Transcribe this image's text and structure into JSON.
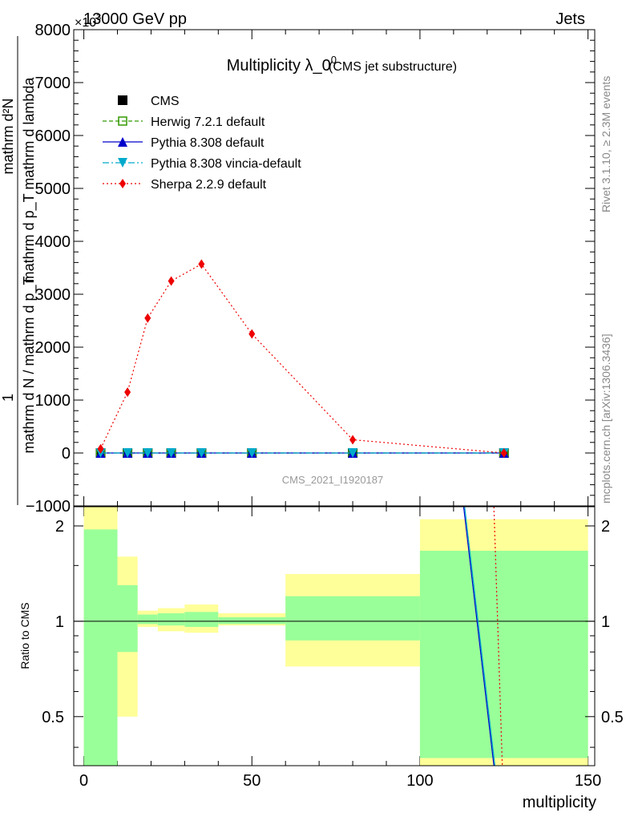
{
  "header": {
    "left": "13000 GeV pp",
    "right": "Jets"
  },
  "side_labels": {
    "rivet": "Rivet 3.1.10, ≥ 2.3M events",
    "mcplots": "mcplots.cern.ch [arXiv:1306.3436]"
  },
  "chart_data": {
    "type": "line",
    "title": "Multiplicity λ_0",
    "title_sup": "0",
    "subtitle": "(CMS jet substructure)",
    "watermark": "CMS_2021_I1920187",
    "exponent_label": "×10",
    "exponent_power": "3",
    "ylabel_top": "mathrm d²N",
    "ylabel_mid": "mathrm d p_T mathrm d lambda",
    "ylabel_one": "1",
    "ylabel_bottom": "mathrm d N / mathrm d p_T",
    "xlabel": "multiplicity",
    "ratio_ylabel": "Ratio to CMS",
    "xlim": [
      -3,
      152
    ],
    "ylim": [
      -1000,
      8000
    ],
    "y_ticks": [
      -1000,
      0,
      1000,
      2000,
      3000,
      4000,
      5000,
      6000,
      7000,
      8000
    ],
    "y_tick_labels": [
      "−1000",
      "0",
      "1000",
      "2000",
      "3000",
      "4000",
      "5000",
      "6000",
      "7000",
      "8000"
    ],
    "x_ticks": [
      0,
      50,
      100,
      150
    ],
    "x_tick_labels": [
      "0",
      "50",
      "100",
      "150"
    ],
    "ratio_ylim": [
      0.35,
      2.3
    ],
    "ratio_ticks": [
      0.5,
      1,
      2
    ],
    "ratio_tick_labels": [
      "0.5",
      "1",
      "2"
    ],
    "x": [
      5,
      13,
      19,
      26,
      35,
      50,
      80,
      125
    ],
    "series": [
      {
        "name": "CMS",
        "values": [
          0,
          0,
          0,
          0,
          0,
          0,
          0,
          0
        ],
        "color": "#000000",
        "marker": "square",
        "line": "none"
      },
      {
        "name": "Herwig 7.2.1 default",
        "values": [
          0,
          0,
          0,
          0,
          0,
          0,
          0,
          0
        ],
        "color": "#339900",
        "marker": "open-square",
        "line": "dashed"
      },
      {
        "name": "Pythia 8.308 default",
        "values": [
          0,
          0,
          0,
          0,
          0,
          0,
          0,
          0
        ],
        "color": "#0000cc",
        "marker": "triangle-up",
        "line": "solid"
      },
      {
        "name": "Pythia 8.308 vincia-default",
        "values": [
          0,
          0,
          0,
          0,
          0,
          0,
          0,
          0
        ],
        "color": "#00aacc",
        "marker": "triangle-down",
        "line": "dashdot"
      },
      {
        "name": "Sherpa 2.2.9 default",
        "values": [
          80,
          1150,
          2550,
          3250,
          3570,
          2250,
          250,
          0
        ],
        "color": "#ee0000",
        "marker": "diamond",
        "line": "dotted"
      }
    ],
    "uncertainty_bands": [
      {
        "x0": 0,
        "x1": 10,
        "inner": [
          0.3,
          1.95
        ],
        "outer": [
          0.3,
          2.3
        ]
      },
      {
        "x0": 10,
        "x1": 16,
        "inner": [
          0.8,
          1.3
        ],
        "outer": [
          0.5,
          1.6
        ]
      },
      {
        "x0": 16,
        "x1": 22,
        "inner": [
          0.98,
          1.05
        ],
        "outer": [
          0.96,
          1.08
        ]
      },
      {
        "x0": 22,
        "x1": 30,
        "inner": [
          0.97,
          1.06
        ],
        "outer": [
          0.93,
          1.1
        ]
      },
      {
        "x0": 30,
        "x1": 40,
        "inner": [
          0.96,
          1.07
        ],
        "outer": [
          0.92,
          1.13
        ]
      },
      {
        "x0": 40,
        "x1": 60,
        "inner": [
          0.98,
          1.03
        ],
        "outer": [
          0.97,
          1.06
        ]
      },
      {
        "x0": 60,
        "x1": 100,
        "inner": [
          0.87,
          1.2
        ],
        "outer": [
          0.72,
          1.41
        ]
      },
      {
        "x0": 100,
        "x1": 150,
        "inner": [
          0.37,
          1.67
        ],
        "outer": [
          0.3,
          2.1
        ]
      }
    ],
    "ratio_lines": [
      {
        "name": "Pythia 8.308 default",
        "color": "#0000cc",
        "dash": "",
        "points": [
          [
            113,
            2.3
          ],
          [
            122,
            0.35
          ]
        ]
      },
      {
        "name": "Pythia 8.308 vincia-default",
        "color": "#00aacc",
        "dash": "",
        "points": [
          [
            113.3,
            2.3
          ],
          [
            122.3,
            0.35
          ]
        ]
      },
      {
        "name": "Sherpa 2.2.9 default",
        "color": "#ee0000",
        "dash": "2,3",
        "points": [
          [
            122,
            2.3
          ],
          [
            124.5,
            0.35
          ]
        ]
      }
    ]
  }
}
